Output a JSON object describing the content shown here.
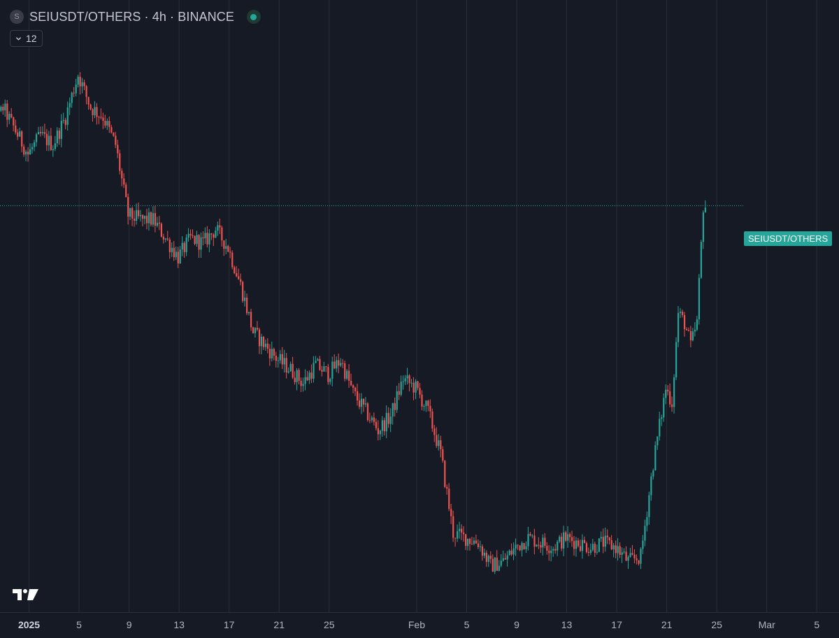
{
  "header": {
    "symbol_icon": "S",
    "title": "SEIUSDT/OTHERS · 4h · BINANCE",
    "status_color": "#26a69a"
  },
  "indicator_toggle": {
    "label": "12",
    "icon": "chevron-down-icon"
  },
  "price_label": "SEIUSDT/OTHERS",
  "colors": {
    "background": "#161a25",
    "up": "#26a69a",
    "down": "#ef5350",
    "grid": "#2a2e39"
  },
  "chart_data": {
    "type": "candlestick",
    "symbol": "SEIUSDT/OTHERS",
    "interval": "4h",
    "exchange": "BINANCE",
    "x_range": [
      "2024-12-28",
      "2025-03-07"
    ],
    "x_ticks": [
      {
        "date": "2025-01-01",
        "label": "2025",
        "bold": true
      },
      {
        "date": "2025-01-05",
        "label": "5"
      },
      {
        "date": "2025-01-09",
        "label": "9"
      },
      {
        "date": "2025-01-13",
        "label": "13"
      },
      {
        "date": "2025-01-17",
        "label": "17"
      },
      {
        "date": "2025-01-21",
        "label": "21"
      },
      {
        "date": "2025-01-25",
        "label": "25"
      },
      {
        "date": "2025-02-01",
        "label": "Feb"
      },
      {
        "date": "2025-02-05",
        "label": "5"
      },
      {
        "date": "2025-02-09",
        "label": "9"
      },
      {
        "date": "2025-02-13",
        "label": "13"
      },
      {
        "date": "2025-02-17",
        "label": "17"
      },
      {
        "date": "2025-02-21",
        "label": "21"
      },
      {
        "date": "2025-02-25",
        "label": "25"
      },
      {
        "date": "2025-03-01",
        "label": "Mar"
      },
      {
        "date": "2025-03-05",
        "label": "5"
      }
    ],
    "price_path": [
      [
        "2024-12-28",
        0.9
      ],
      [
        "2024-12-29",
        0.8
      ],
      [
        "2024-12-30",
        0.86
      ],
      [
        "2024-12-31",
        0.81
      ],
      [
        "2025-01-01",
        0.76
      ],
      [
        "2025-01-02",
        0.8
      ],
      [
        "2025-01-03",
        0.78
      ],
      [
        "2025-01-04",
        0.84
      ],
      [
        "2025-01-05",
        0.93
      ],
      [
        "2025-01-06",
        0.86
      ],
      [
        "2025-01-07",
        0.84
      ],
      [
        "2025-01-08",
        0.78
      ],
      [
        "2025-01-09",
        0.63
      ],
      [
        "2025-01-10",
        0.62
      ],
      [
        "2025-01-11",
        0.62
      ],
      [
        "2025-01-12",
        0.58
      ],
      [
        "2025-01-13",
        0.54
      ],
      [
        "2025-01-14",
        0.58
      ],
      [
        "2025-01-15",
        0.57
      ],
      [
        "2025-01-16",
        0.6
      ],
      [
        "2025-01-17",
        0.56
      ],
      [
        "2025-01-18",
        0.48
      ],
      [
        "2025-01-19",
        0.38
      ],
      [
        "2025-01-20",
        0.35
      ],
      [
        "2025-01-21",
        0.32
      ],
      [
        "2025-01-22",
        0.3
      ],
      [
        "2025-01-23",
        0.27
      ],
      [
        "2025-01-24",
        0.31
      ],
      [
        "2025-01-25",
        0.29
      ],
      [
        "2025-01-26",
        0.32
      ],
      [
        "2025-01-27",
        0.25
      ],
      [
        "2025-01-28",
        0.21
      ],
      [
        "2025-01-29",
        0.17
      ],
      [
        "2025-01-30",
        0.2
      ],
      [
        "2025-01-31",
        0.28
      ],
      [
        "2025-02-01",
        0.26
      ],
      [
        "2025-02-02",
        0.21
      ],
      [
        "2025-02-03",
        0.12
      ],
      [
        "2025-02-04",
        -0.05
      ],
      [
        "2025-02-05",
        -0.06
      ],
      [
        "2025-02-06",
        -0.07
      ],
      [
        "2025-02-07",
        -0.12
      ],
      [
        "2025-02-08",
        -0.11
      ],
      [
        "2025-02-09",
        -0.08
      ],
      [
        "2025-02-10",
        -0.06
      ],
      [
        "2025-02-11",
        -0.07
      ],
      [
        "2025-02-12",
        -0.08
      ],
      [
        "2025-02-13",
        -0.06
      ],
      [
        "2025-02-14",
        -0.07
      ],
      [
        "2025-02-15",
        -0.08
      ],
      [
        "2025-02-16",
        -0.07
      ],
      [
        "2025-02-17",
        -0.08
      ],
      [
        "2025-02-18",
        -0.11
      ],
      [
        "2025-02-19",
        -0.1
      ],
      [
        "2025-02-20",
        0.1
      ],
      [
        "2025-02-21",
        0.26
      ],
      [
        "2025-02-21T12:00",
        0.23
      ],
      [
        "2025-02-22",
        0.42
      ],
      [
        "2025-02-22T12:00",
        0.4
      ],
      [
        "2025-02-23",
        0.35
      ],
      [
        "2025-02-23T12:00",
        0.4
      ],
      [
        "2025-02-24",
        0.65
      ]
    ],
    "price_line_value": 0.65
  }
}
